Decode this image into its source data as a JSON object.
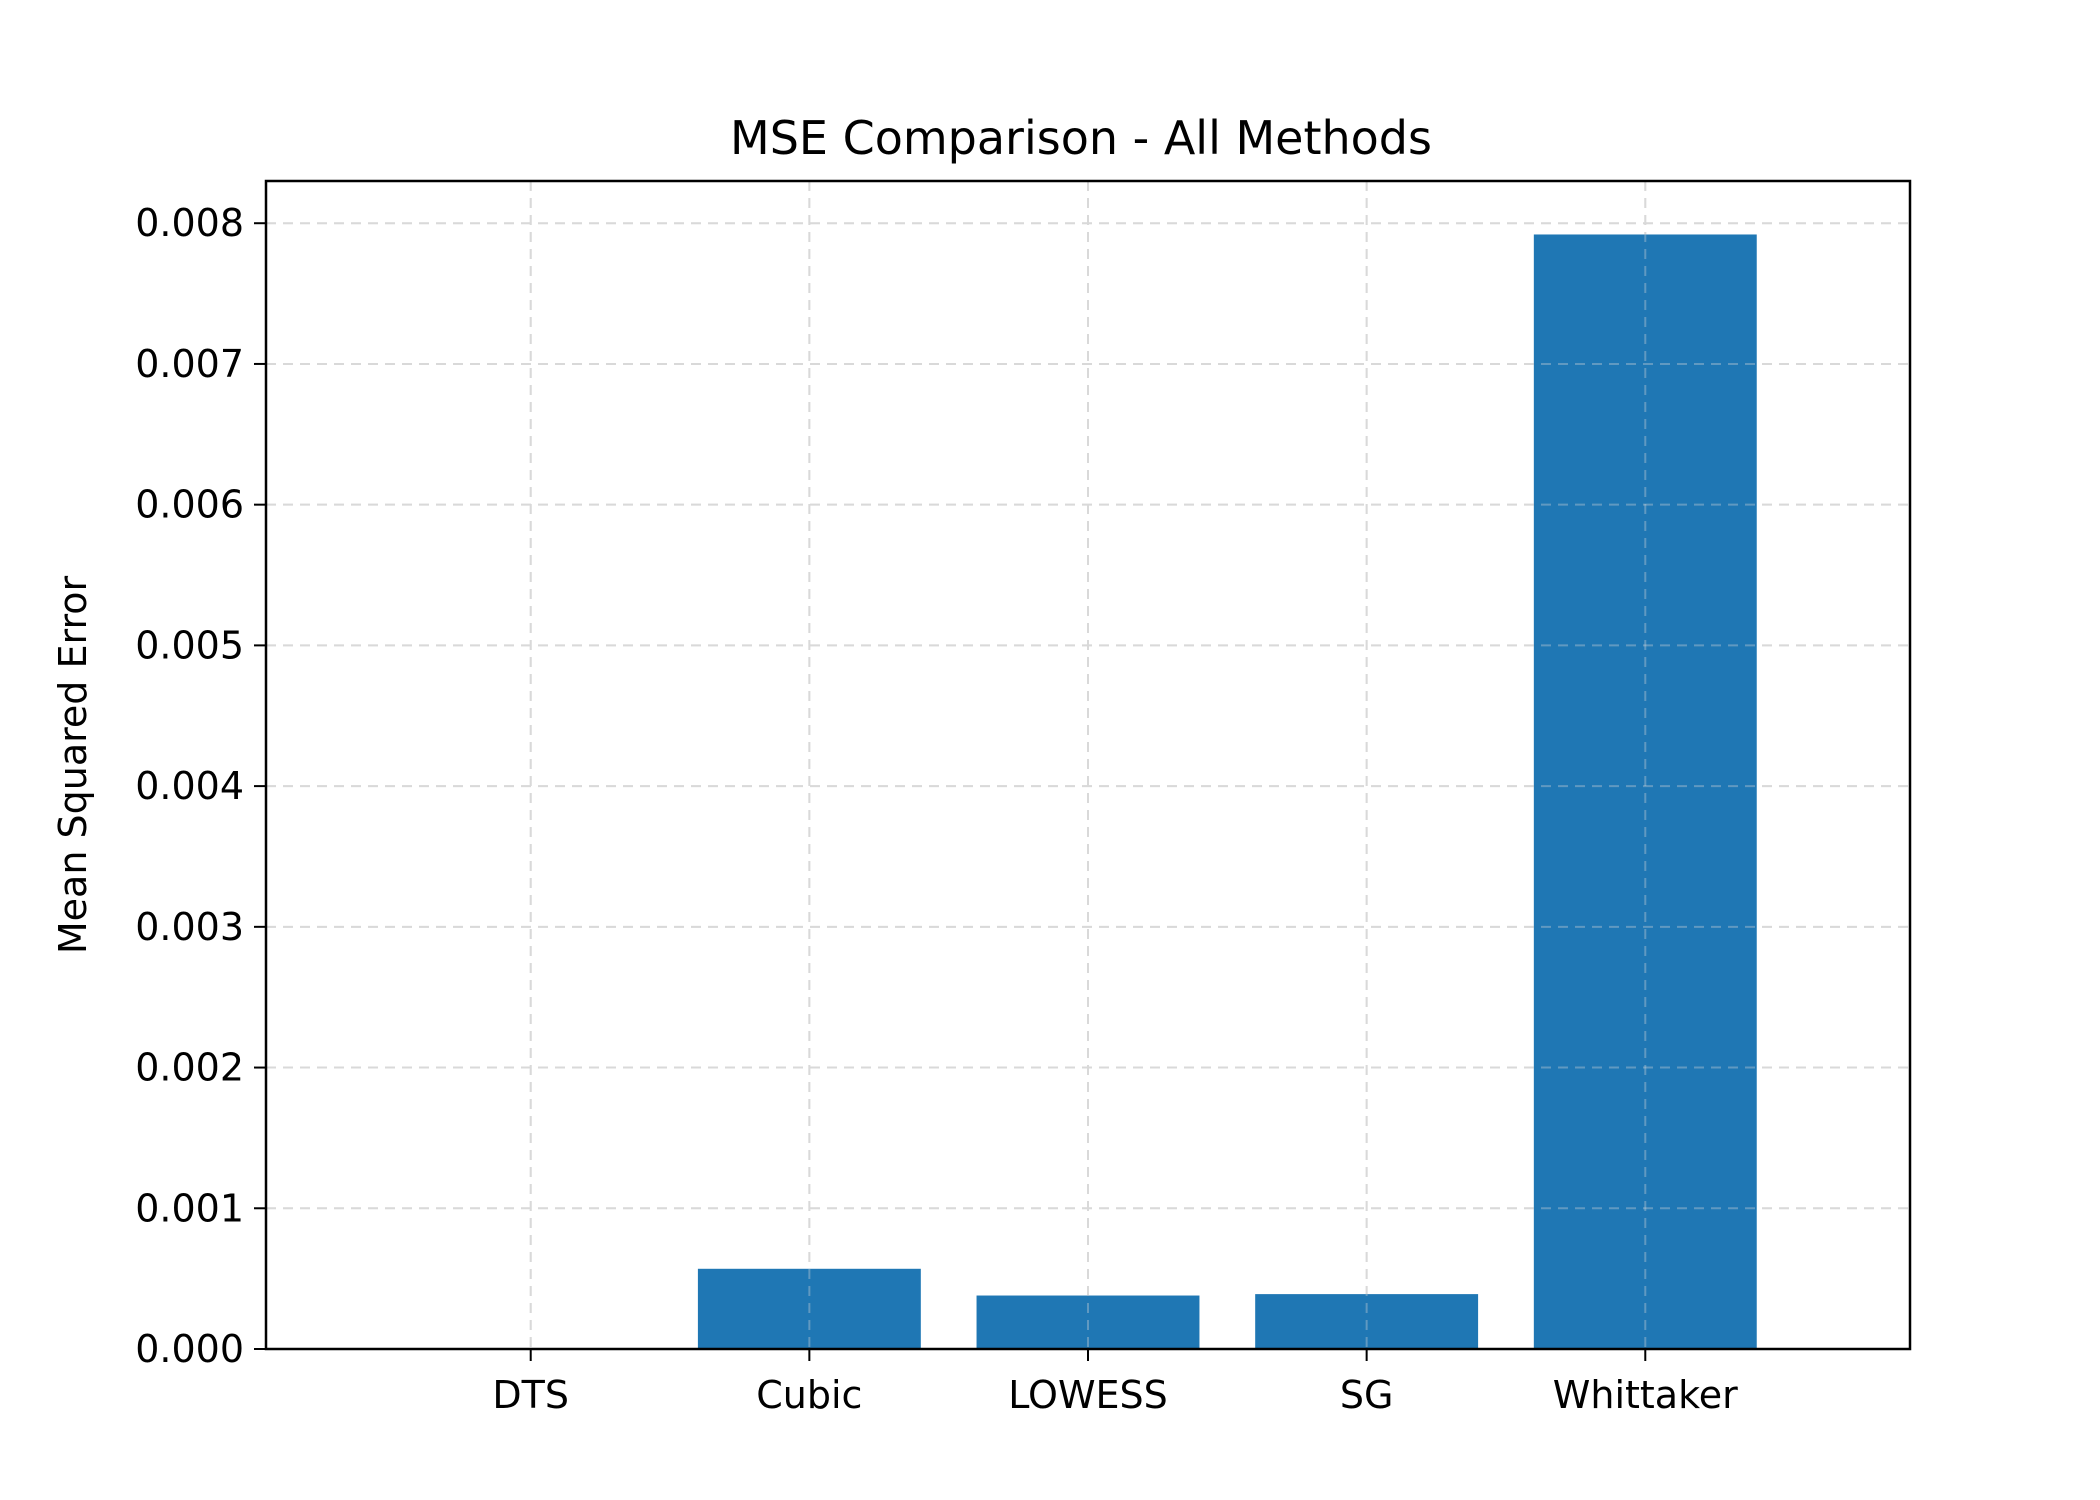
{
  "chart_data": {
    "type": "bar",
    "title": "MSE Comparison - All Methods",
    "xlabel": "",
    "ylabel": "Mean Squared Error",
    "categories": [
      "DTS",
      "Cubic",
      "LOWESS",
      "SG",
      "Whittaker"
    ],
    "values": [
      0.0,
      0.00057,
      0.00038,
      0.00039,
      0.00792
    ],
    "ylim": [
      0,
      0.0083
    ],
    "yticks": [
      "0.000",
      "0.001",
      "0.002",
      "0.003",
      "0.004",
      "0.005",
      "0.006",
      "0.007",
      "0.008"
    ],
    "ytick_values": [
      0,
      0.001,
      0.002,
      0.003,
      0.004,
      0.005,
      0.006,
      0.007,
      0.008
    ],
    "grid": true,
    "bar_color": "#1f77b4"
  }
}
